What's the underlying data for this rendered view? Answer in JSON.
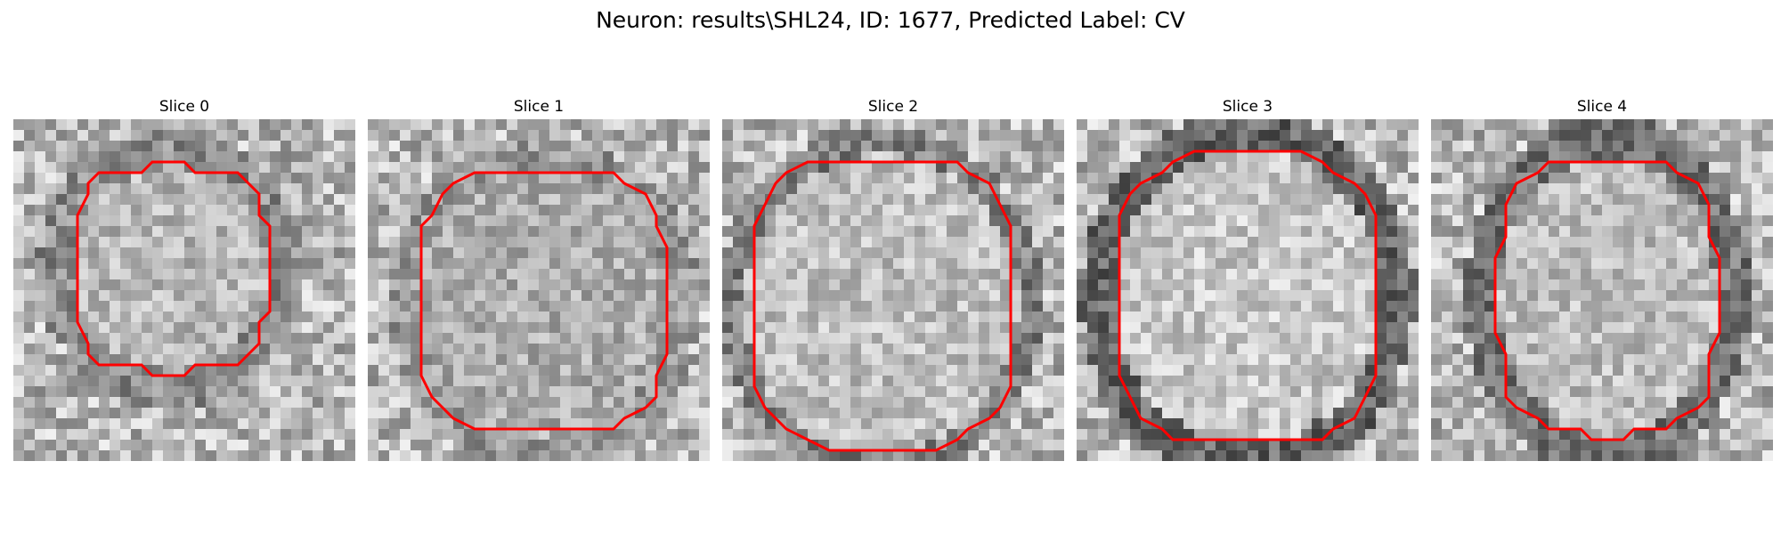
{
  "figure": {
    "title": "Neuron: results\\SHL24, ID: 1677, Predicted Label: CV"
  },
  "contour_color": "#ff0000",
  "panels": [
    {
      "title": "Slice 0"
    },
    {
      "title": "Slice 1"
    },
    {
      "title": "Slice 2"
    },
    {
      "title": "Slice 3"
    },
    {
      "title": "Slice 4"
    }
  ]
}
